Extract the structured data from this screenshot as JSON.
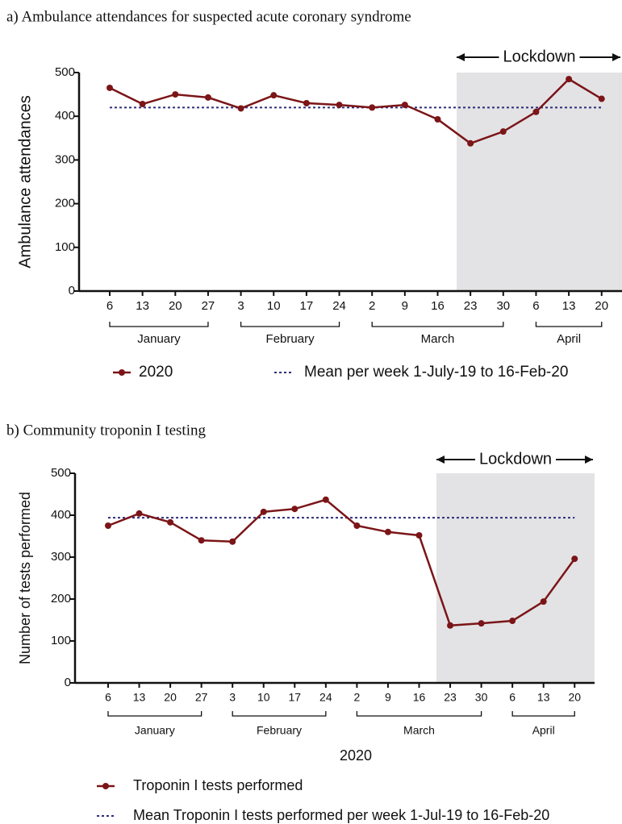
{
  "chart_data": [
    {
      "type": "line",
      "title": "a) Ambulance attendances for suspected acute coronary syndrome",
      "ylabel": "Ambulance attendances",
      "categories": [
        "6",
        "13",
        "20",
        "27",
        "3",
        "10",
        "17",
        "24",
        "2",
        "9",
        "16",
        "23",
        "30",
        "6",
        "13",
        "20"
      ],
      "x_groups": [
        "January",
        "February",
        "March",
        "April"
      ],
      "annotation": "Lockdown",
      "series": [
        {
          "name": "2020",
          "color": "#7b1518",
          "values": [
            465,
            428,
            450,
            443,
            418,
            448,
            430,
            426,
            420,
            426,
            393,
            338,
            365,
            410,
            485,
            440
          ]
        }
      ],
      "reference_line": {
        "name": "Mean per week 1-July-19 to 16-Feb-20",
        "color": "#2e2d7c",
        "value": 420
      },
      "ylim": [
        0,
        500
      ],
      "yticks": [
        0,
        100,
        200,
        300,
        400,
        500
      ]
    },
    {
      "type": "line",
      "title": "b) Community troponin I testing",
      "ylabel": "Number of tests performed",
      "xlabel": "2020",
      "categories": [
        "6",
        "13",
        "20",
        "27",
        "3",
        "10",
        "17",
        "24",
        "2",
        "9",
        "16",
        "23",
        "30",
        "6",
        "13",
        "20"
      ],
      "x_groups": [
        "January",
        "February",
        "March",
        "April"
      ],
      "annotation": "Lockdown",
      "series": [
        {
          "name": "Troponin I tests performed",
          "color": "#7b1518",
          "values": [
            375,
            404,
            383,
            340,
            337,
            408,
            415,
            437,
            375,
            360,
            352,
            137,
            142,
            148,
            194,
            296
          ]
        }
      ],
      "reference_line": {
        "name": "Mean Troponin I tests performed per week 1-Jul-19 to 16-Feb-20",
        "color": "#2e2d7c",
        "value": 394
      },
      "ylim": [
        0,
        500
      ],
      "yticks": [
        0,
        100,
        200,
        300,
        400,
        500
      ]
    }
  ]
}
